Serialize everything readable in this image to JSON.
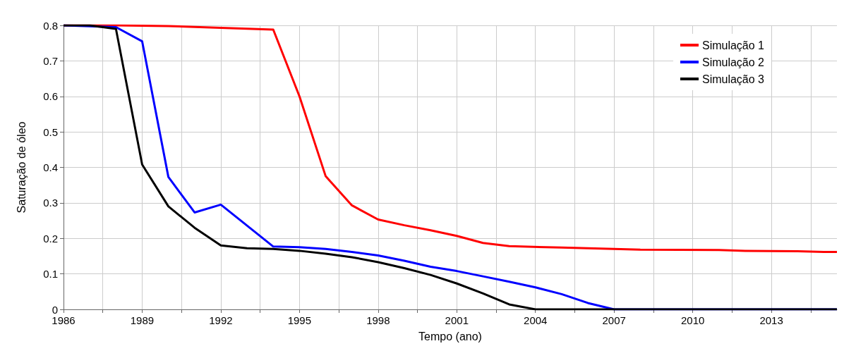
{
  "chart_data": {
    "type": "line",
    "xlabel": "Tempo (ano)",
    "ylabel": "Saturação de óleo",
    "xlim": [
      1986,
      2015.5
    ],
    "xticks": [
      1986,
      {
        "value": 1987.5,
        "label": null
      },
      1989,
      {
        "value": 1990.5,
        "label": null
      },
      1992,
      {
        "value": 1993.5,
        "label": null
      },
      1995,
      {
        "value": 1996.5,
        "label": null
      },
      1998,
      {
        "value": 1999.5,
        "label": null
      },
      2001,
      {
        "value": 2002.5,
        "label": null
      },
      2004,
      {
        "value": 2005.5,
        "label": null
      },
      2007,
      {
        "value": 2008.5,
        "label": null
      },
      2010,
      {
        "value": 2011.5,
        "label": null
      },
      2013,
      {
        "value": 2014.5,
        "label": null
      }
    ],
    "ylim": [
      0,
      0.8
    ],
    "yticks": [
      0,
      0.1,
      0.2,
      0.3,
      0.4,
      0.5,
      0.6,
      0.7,
      0.8
    ],
    "grid": true,
    "legend": "top right",
    "marker": "none",
    "line_style": "solid",
    "series": [
      {
        "name": "Simulação 1",
        "color": "#ff0000",
        "x": [
          1986,
          1988,
          1990,
          1992,
          1994,
          1995,
          1996,
          1997,
          1998,
          1999,
          2000,
          2001,
          2002,
          2003,
          2005,
          2007,
          2008,
          2011,
          2012,
          2014,
          2015,
          2015.5
        ],
        "values": [
          0.8,
          0.8,
          0.798,
          0.793,
          0.788,
          0.6,
          0.375,
          0.293,
          0.253,
          0.237,
          0.223,
          0.207,
          0.187,
          0.178,
          0.174,
          0.17,
          0.168,
          0.167,
          0.165,
          0.164,
          0.162,
          0.162
        ]
      },
      {
        "name": "Simulação 2",
        "color": "#0000ff",
        "x": [
          1986,
          1988,
          1989,
          1990,
          1991,
          1992,
          1994,
          1995,
          1996,
          1997,
          1998,
          1999,
          2000,
          2001,
          2002,
          2003,
          2004,
          2005,
          2006,
          2007,
          2015.5
        ],
        "values": [
          0.8,
          0.795,
          0.755,
          0.373,
          0.273,
          0.295,
          0.177,
          0.175,
          0.17,
          0.162,
          0.152,
          0.137,
          0.12,
          0.108,
          0.093,
          0.078,
          0.062,
          0.043,
          0.018,
          0,
          0
        ]
      },
      {
        "name": "Simulação 3",
        "color": "#000000",
        "x": [
          1986,
          1987,
          1988,
          1989,
          1990,
          1991,
          1992,
          1993,
          1994,
          1995,
          1996,
          1997,
          1998,
          1999,
          2000,
          2001,
          2002,
          2003,
          2004,
          2015.5
        ],
        "values": [
          0.8,
          0.8,
          0.79,
          0.408,
          0.29,
          0.23,
          0.18,
          0.172,
          0.17,
          0.165,
          0.157,
          0.147,
          0.133,
          0.116,
          0.097,
          0.073,
          0.045,
          0.014,
          0,
          0
        ]
      }
    ]
  }
}
